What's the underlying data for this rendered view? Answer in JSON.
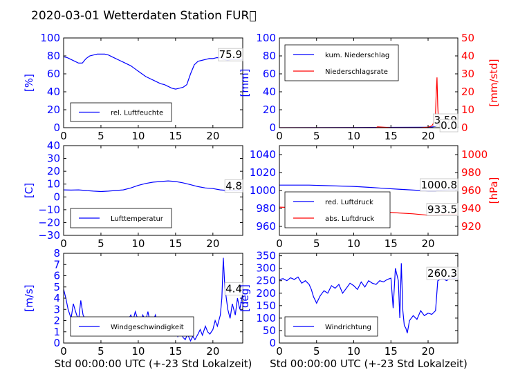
{
  "title": "2020-03-01 Wetterdaten Station FUR\u0000",
  "colors": {
    "left": "#0000ff",
    "right": "#ff0000",
    "sub": "#8080ff"
  },
  "chart_data": [
    {
      "type": "line",
      "name": "humidity",
      "ylabel": "[%]",
      "xlabel": "",
      "xlim": [
        0,
        24
      ],
      "ylim": [
        0,
        100
      ],
      "xticks": [
        0,
        5,
        10,
        15,
        20
      ],
      "yticks": [
        0,
        20,
        40,
        60,
        80,
        100
      ],
      "last_value": "75.9",
      "legend": "lower-left",
      "series": [
        {
          "name": "rel. Luftfeuchte",
          "x": [
            0,
            0.5,
            1,
            1.5,
            2,
            2.5,
            3,
            3.5,
            4,
            4.5,
            5,
            5.5,
            6,
            6.5,
            7,
            7.5,
            8,
            8.5,
            9,
            9.5,
            10,
            10.5,
            11,
            11.5,
            12,
            12.5,
            13,
            13.5,
            14,
            14.5,
            15,
            15.5,
            16,
            16.5,
            17,
            17.5,
            18,
            18.5,
            19,
            19.5,
            20,
            20.5,
            21,
            21.5,
            22,
            22.5,
            23,
            23.5,
            24
          ],
          "y": [
            79,
            78,
            76,
            74,
            72,
            72,
            77,
            80,
            81,
            82,
            82,
            82,
            81,
            79,
            77,
            75,
            73,
            71,
            69,
            66,
            63,
            60,
            57,
            55,
            53,
            51,
            49,
            48,
            46,
            44,
            43,
            44,
            45,
            48,
            60,
            70,
            74,
            75,
            76,
            77,
            77,
            78,
            78,
            76,
            75,
            76,
            76,
            76,
            76
          ]
        }
      ]
    },
    {
      "type": "line",
      "name": "precipitation",
      "ylabel": "[mm]",
      "ylabel_right": "[mm/std]",
      "xlabel": "",
      "xlim": [
        0,
        24
      ],
      "ylim": [
        0,
        100
      ],
      "ylim_right": [
        0,
        50
      ],
      "xticks": [
        0,
        5,
        10,
        15,
        20
      ],
      "yticks": [
        0,
        20,
        40,
        60,
        80,
        100
      ],
      "yticks_right": [
        0,
        10,
        20,
        30,
        40,
        50
      ],
      "last_value": "3.59",
      "last_value_right": "0.0",
      "legend": "top-left",
      "series": [
        {
          "name": "kum. Niederschlag",
          "axis": "left",
          "x": [
            0,
            5,
            10,
            15,
            19,
            20,
            20.5,
            21,
            21.2,
            21.5,
            22,
            23,
            24
          ],
          "y": [
            0,
            0.1,
            0.2,
            0.4,
            0.5,
            0.6,
            0.8,
            1.5,
            3.2,
            3.5,
            3.59,
            3.59,
            3.59
          ]
        },
        {
          "name": "Niederschlagsrate",
          "axis": "right",
          "x": [
            0,
            5,
            10,
            13,
            13.2,
            15,
            19,
            20,
            20.5,
            20.8,
            21,
            21.1,
            21.2,
            21.3,
            21.4,
            21.6,
            22,
            24
          ],
          "y": [
            0,
            0,
            0,
            0,
            0.5,
            0,
            0,
            0.3,
            1,
            3,
            8,
            20,
            28,
            12,
            4,
            1,
            0,
            0
          ]
        }
      ]
    },
    {
      "type": "line",
      "name": "temperature",
      "ylabel": "[C]",
      "xlabel": "",
      "xlim": [
        0,
        24
      ],
      "ylim": [
        -30,
        40
      ],
      "xticks": [
        0,
        5,
        10,
        15,
        20
      ],
      "yticks": [
        -30,
        -20,
        -10,
        0,
        10,
        20,
        30,
        40
      ],
      "last_value": "4.8",
      "legend": "lower-left",
      "series": [
        {
          "name": "Lufttemperatur",
          "x": [
            0,
            1,
            2,
            3,
            4,
            5,
            6,
            7,
            8,
            9,
            10,
            11,
            12,
            13,
            14,
            15,
            16,
            17,
            18,
            19,
            20,
            21,
            22,
            23,
            24
          ],
          "y": [
            5.5,
            5.3,
            5.5,
            5.0,
            4.5,
            4.2,
            4.5,
            5.0,
            5.5,
            7.0,
            9.0,
            10.5,
            11.5,
            12.0,
            12.5,
            12.0,
            11.0,
            9.5,
            8.0,
            7.0,
            6.5,
            5.5,
            5.0,
            4.8,
            4.8
          ]
        }
      ]
    },
    {
      "type": "line",
      "name": "pressure",
      "ylabel": "",
      "ylabel_right": "[hPa]",
      "xlabel": "",
      "xlim": [
        0,
        24
      ],
      "ylim": [
        950,
        1050
      ],
      "ylim_right": [
        910,
        1010
      ],
      "xticks": [
        0,
        5,
        10,
        15,
        20
      ],
      "yticks": [
        960,
        980,
        1000,
        1020,
        1040
      ],
      "yticks_right": [
        920,
        940,
        960,
        980,
        1000
      ],
      "last_value": "1000.8",
      "last_value_right": "933.5",
      "legend": "lower-left",
      "series": [
        {
          "name": "red. Luftdruck",
          "axis": "left",
          "x": [
            0,
            2,
            4,
            6,
            8,
            10,
            12,
            14,
            16,
            18,
            20,
            21,
            22,
            23,
            24
          ],
          "y": [
            1006,
            1006,
            1006,
            1005.5,
            1005,
            1004.5,
            1003.5,
            1002.5,
            1001.5,
            1000.5,
            999.5,
            999.5,
            1000.5,
            1000.8,
            1000.8
          ]
        },
        {
          "name": "abs. Luftdruck",
          "axis": "right",
          "x": [
            0,
            2,
            4,
            6,
            8,
            10,
            12,
            14,
            16,
            18,
            20,
            21,
            22,
            23,
            24
          ],
          "y": [
            941.5,
            941,
            940.5,
            940,
            939.5,
            938.5,
            937.5,
            936,
            935,
            934,
            932.5,
            932.5,
            933.5,
            933.5,
            933.5
          ]
        }
      ]
    },
    {
      "type": "line",
      "name": "windspeed",
      "ylabel": "[m/s]",
      "xlabel": "Std 00:00:00 UTC (+-23 Std Lokalzeit)",
      "xlim": [
        0,
        24
      ],
      "ylim": [
        0,
        8
      ],
      "xticks": [
        0,
        5,
        10,
        15,
        20
      ],
      "yticks": [
        0,
        1,
        2,
        3,
        4,
        5,
        6,
        7,
        8
      ],
      "last_value": "4.4",
      "legend": "lower-left",
      "series": [
        {
          "name": "Windgeschwindigkeit",
          "x": [
            0,
            0.3,
            0.6,
            1,
            1.3,
            1.6,
            2,
            2.3,
            2.6,
            3,
            3.3,
            3.6,
            4,
            4.3,
            4.6,
            5,
            5.3,
            5.6,
            6,
            6.3,
            6.6,
            7,
            7.3,
            7.6,
            8,
            8.3,
            8.6,
            9,
            9.3,
            9.6,
            10,
            10.3,
            10.6,
            11,
            11.3,
            11.6,
            12,
            12.3,
            12.6,
            13,
            13.3,
            13.6,
            14,
            14.3,
            14.6,
            15,
            15.3,
            15.6,
            16,
            16.3,
            16.6,
            17,
            17.3,
            17.6,
            18,
            18.3,
            18.6,
            19,
            19.3,
            19.6,
            20,
            20.3,
            20.6,
            21,
            21.2,
            21.4,
            21.6,
            22,
            22.3,
            22.6,
            23,
            23.3,
            23.6,
            24
          ],
          "y": [
            4.8,
            4.0,
            3.0,
            2.2,
            3.5,
            2.8,
            2.0,
            3.8,
            2.5,
            2.0,
            1.2,
            2.0,
            1.5,
            1.0,
            1.8,
            1.2,
            2.0,
            1.5,
            1.0,
            1.6,
            1.3,
            1.8,
            2.2,
            1.4,
            1.0,
            1.5,
            2.0,
            2.5,
            2.0,
            2.8,
            2.0,
            1.5,
            2.5,
            2.0,
            2.8,
            1.8,
            2.0,
            2.5,
            1.5,
            2.2,
            1.0,
            1.8,
            1.2,
            2.0,
            1.0,
            1.5,
            0.6,
            1.2,
            0.5,
            0.3,
            0.8,
            0.2,
            0.6,
            0.3,
            0.8,
            1.2,
            0.7,
            1.5,
            1.0,
            0.8,
            1.2,
            2.0,
            1.5,
            2.5,
            4.0,
            7.6,
            5.0,
            3.0,
            2.2,
            3.5,
            2.5,
            4.0,
            3.0,
            4.4
          ]
        }
      ]
    },
    {
      "type": "line",
      "name": "winddirection",
      "ylabel": "[deg]",
      "xlabel": "Std 00:00:00 UTC (+-23 Std Lokalzeit)",
      "xlim": [
        0,
        24
      ],
      "ylim": [
        0,
        360
      ],
      "xticks": [
        0,
        5,
        10,
        15,
        20
      ],
      "yticks": [
        0,
        50,
        100,
        150,
        200,
        250,
        300,
        350
      ],
      "last_value": "260.3",
      "legend": "lower-left",
      "series": [
        {
          "name": "Windrichtung",
          "x": [
            0,
            0.5,
            1,
            1.5,
            2,
            2.5,
            3,
            3.5,
            4,
            4.3,
            4.6,
            5,
            5.5,
            6,
            6.5,
            7,
            7.5,
            8,
            8.5,
            9,
            9.5,
            10,
            10.5,
            11,
            11.5,
            12,
            12.5,
            13,
            13.5,
            14,
            14.5,
            15,
            15.3,
            15.6,
            16,
            16.2,
            16.4,
            16.6,
            16.8,
            17,
            17.2,
            17.5,
            18,
            18.5,
            19,
            19.5,
            20,
            20.5,
            21,
            21.3,
            21.6,
            22,
            22.5,
            23,
            23.5,
            24
          ],
          "y": [
            255,
            258,
            250,
            262,
            255,
            265,
            240,
            250,
            235,
            215,
            185,
            160,
            190,
            210,
            200,
            230,
            220,
            235,
            200,
            220,
            240,
            230,
            215,
            245,
            225,
            250,
            240,
            235,
            250,
            245,
            255,
            260,
            140,
            300,
            250,
            100,
            320,
            130,
            70,
            60,
            40,
            90,
            110,
            95,
            130,
            110,
            120,
            115,
            130,
            250,
            255,
            258,
            250,
            262,
            258,
            260
          ]
        }
      ]
    }
  ]
}
